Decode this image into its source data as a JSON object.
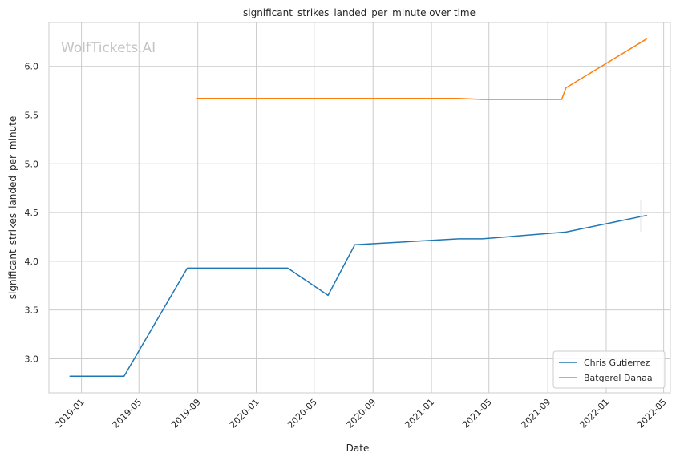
{
  "chart_data": {
    "type": "line",
    "title": "significant_strikes_landed_per_minute over time",
    "xlabel": "Date",
    "ylabel": "significant_strikes_landed_per_minute",
    "watermark": "WolfTickets.AI",
    "xlim": [
      "2018-10-25",
      "2022-05-15"
    ],
    "ylim": [
      2.65,
      6.45
    ],
    "x_ticks": [
      "2019-01",
      "2019-05",
      "2019-09",
      "2020-01",
      "2020-05",
      "2020-09",
      "2021-01",
      "2021-05",
      "2021-09",
      "2022-01",
      "2022-05"
    ],
    "y_ticks": [
      "3.0",
      "3.5",
      "4.0",
      "4.5",
      "5.0",
      "5.5",
      "6.0"
    ],
    "grid": true,
    "legend_position": "lower-right",
    "series": [
      {
        "name": "Chris Gutierrez",
        "color": "#1f77b4",
        "points": [
          {
            "date": "2018-12-08",
            "value": 2.82
          },
          {
            "date": "2019-03-31",
            "value": 2.82
          },
          {
            "date": "2019-08-10",
            "value": 3.93
          },
          {
            "date": "2020-03-07",
            "value": 3.93
          },
          {
            "date": "2020-05-30",
            "value": 3.65
          },
          {
            "date": "2020-07-25",
            "value": 4.17
          },
          {
            "date": "2021-02-27",
            "value": 4.23
          },
          {
            "date": "2021-04-17",
            "value": 4.23
          },
          {
            "date": "2021-10-09",
            "value": 4.3
          },
          {
            "date": "2022-03-26",
            "value": 4.47
          }
        ]
      },
      {
        "name": "Batgerel Danaa",
        "color": "#ff7f0e",
        "points": [
          {
            "date": "2019-08-31",
            "value": 5.67
          },
          {
            "date": "2021-02-27",
            "value": 5.67
          },
          {
            "date": "2021-04-17",
            "value": 5.66
          },
          {
            "date": "2021-09-30",
            "value": 5.66
          },
          {
            "date": "2021-10-09",
            "value": 5.78
          },
          {
            "date": "2022-03-26",
            "value": 6.28
          }
        ]
      }
    ]
  }
}
